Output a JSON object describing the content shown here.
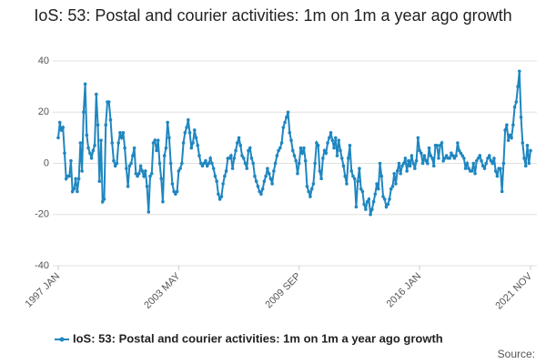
{
  "chart_data": {
    "type": "line",
    "title": "IoS: 53: Postal and courier activities: 1m on 1m a year ago growth",
    "source": "Source:",
    "categories": [
      "1997 JAN",
      null,
      null,
      null,
      null,
      null,
      null,
      null,
      null,
      null,
      null,
      null,
      null,
      null,
      null,
      null,
      null,
      null,
      null,
      null,
      null,
      null,
      null,
      null,
      null,
      null,
      null,
      null,
      null,
      null,
      null,
      null,
      null,
      null,
      null,
      null,
      null,
      null,
      null,
      null,
      null,
      null,
      null,
      null,
      null,
      null,
      null,
      null,
      null,
      null,
      null,
      null,
      null,
      null,
      null,
      null,
      null,
      null,
      null,
      null,
      null,
      null,
      null,
      null,
      null,
      null,
      null,
      null,
      null,
      null,
      null,
      null,
      null,
      null,
      null,
      null,
      "2003 MAY",
      null,
      null,
      null,
      null,
      null,
      null,
      null,
      null,
      null,
      null,
      null,
      null,
      null,
      null,
      null,
      null,
      null,
      null,
      null,
      null,
      null,
      null,
      null,
      null,
      null,
      null,
      null,
      null,
      null,
      null,
      null,
      null,
      null,
      null,
      null,
      null,
      null,
      null,
      null,
      null,
      null,
      null,
      null,
      null,
      null,
      null,
      null,
      null,
      null,
      null,
      null,
      null,
      null,
      null,
      null,
      null,
      null,
      null,
      null,
      null,
      null,
      null,
      null,
      null,
      null,
      null,
      null,
      null,
      null,
      null,
      null,
      null,
      null,
      null,
      null,
      "2009 SEP",
      null,
      null,
      null,
      null,
      null,
      null,
      null,
      null,
      null,
      null,
      null,
      null,
      null,
      null,
      null,
      null,
      null,
      null,
      null,
      null,
      null,
      null,
      null,
      null,
      null,
      null,
      null,
      null,
      null,
      null,
      null,
      null,
      null,
      null,
      null,
      null,
      null,
      null,
      null,
      null,
      null,
      null,
      null,
      null,
      null,
      null,
      null,
      null,
      null,
      null,
      null,
      null,
      null,
      null,
      null,
      null,
      null,
      null,
      null,
      null,
      null,
      null,
      null,
      null,
      null,
      null,
      null,
      null,
      null,
      null,
      null,
      null,
      null,
      null,
      null,
      "2016 JAN",
      null,
      null,
      null,
      null,
      null,
      null,
      null,
      null,
      null,
      null,
      null,
      null,
      null,
      null,
      null,
      null,
      null,
      null,
      null,
      null,
      null,
      null,
      null,
      null,
      null,
      null,
      null,
      null,
      null,
      null,
      null,
      null,
      null,
      null,
      null,
      null,
      null,
      null,
      null,
      null,
      null,
      null,
      null,
      null,
      null,
      null,
      null,
      null,
      null,
      null,
      null,
      null,
      null,
      null,
      null,
      null,
      null,
      null,
      null,
      null,
      null,
      null,
      null,
      null,
      null,
      null,
      null,
      null,
      null,
      "2021 NOV"
    ],
    "series": [
      {
        "name": "IoS: 53: Postal and courier activities: 1m on 1m a year ago growth",
        "color": "#1f86c0",
        "values": [
          10,
          16,
          13,
          14,
          4,
          -6,
          -5,
          -5,
          1,
          -11,
          -10,
          -6,
          -11,
          -6,
          8,
          -3,
          20,
          31,
          11,
          6,
          4,
          2,
          5,
          7,
          27,
          15,
          -7,
          9,
          -15,
          -14,
          15,
          24,
          24,
          17,
          8,
          1,
          -1,
          0,
          8,
          12,
          10,
          12,
          6,
          -2,
          -9,
          -1,
          0,
          3,
          6,
          -4,
          -5,
          -4,
          -1,
          -3,
          -5,
          -3,
          -9,
          -19,
          -5,
          -4,
          8,
          9,
          5,
          9,
          0,
          -6,
          -15,
          3,
          6,
          16,
          10,
          0,
          -8,
          -11,
          -12,
          -11,
          -3,
          -2,
          0,
          8,
          12,
          14,
          17,
          12,
          6,
          8,
          13,
          10,
          7,
          3,
          0,
          -1,
          0,
          1,
          -1,
          0,
          2,
          0,
          -2,
          -5,
          -7,
          -12,
          -14,
          -13,
          -8,
          -5,
          -3,
          2,
          2,
          3,
          -2,
          2,
          5,
          8,
          10,
          7,
          3,
          2,
          0,
          -2,
          5,
          6,
          2,
          0,
          -5,
          -7,
          -9,
          -11,
          -12,
          -10,
          -7,
          -5,
          -2,
          -4,
          -6,
          -8,
          -3,
          0,
          3,
          5,
          6,
          8,
          14,
          16,
          18,
          20,
          12,
          9,
          5,
          3,
          1,
          -4,
          0,
          6,
          4,
          6,
          1,
          -9,
          -11,
          -13,
          -10,
          -8,
          0,
          8,
          7,
          -3,
          -6,
          2,
          5,
          4,
          8,
          10,
          12,
          9,
          6,
          10,
          3,
          9,
          5,
          2,
          -1,
          -5,
          -8,
          2,
          7,
          -3,
          -5,
          -6,
          -17,
          -7,
          -2,
          -10,
          -11,
          -16,
          -18,
          -15,
          -14,
          -20,
          -18,
          -15,
          -12,
          -8,
          -10,
          0,
          -5,
          -13,
          -14,
          -17,
          -16,
          -14,
          -10,
          -9,
          -4,
          -8,
          -3,
          0,
          -4,
          -1,
          0,
          2,
          -3,
          1,
          -1,
          3,
          0,
          -2,
          1,
          10,
          5,
          4,
          0,
          3,
          1,
          0,
          6,
          3,
          2,
          -1,
          7,
          7,
          2,
          7,
          8,
          1,
          2,
          3,
          2,
          2,
          4,
          3,
          2,
          3,
          8,
          5,
          4,
          3,
          2,
          -2,
          0,
          -2,
          -3,
          -3,
          0,
          -4,
          1,
          2,
          3,
          1,
          -1,
          -2,
          0,
          2,
          3,
          1,
          0,
          2,
          -3,
          -5,
          -2,
          -2,
          -11,
          0,
          13,
          15,
          9,
          11,
          10,
          15,
          22,
          24,
          30,
          36,
          18,
          8,
          2,
          -1,
          7,
          0,
          5
        ]
      }
    ],
    "ylim": [
      -40,
      40
    ],
    "yticks": [
      -40,
      -20,
      0,
      20,
      40
    ],
    "grid": true
  }
}
